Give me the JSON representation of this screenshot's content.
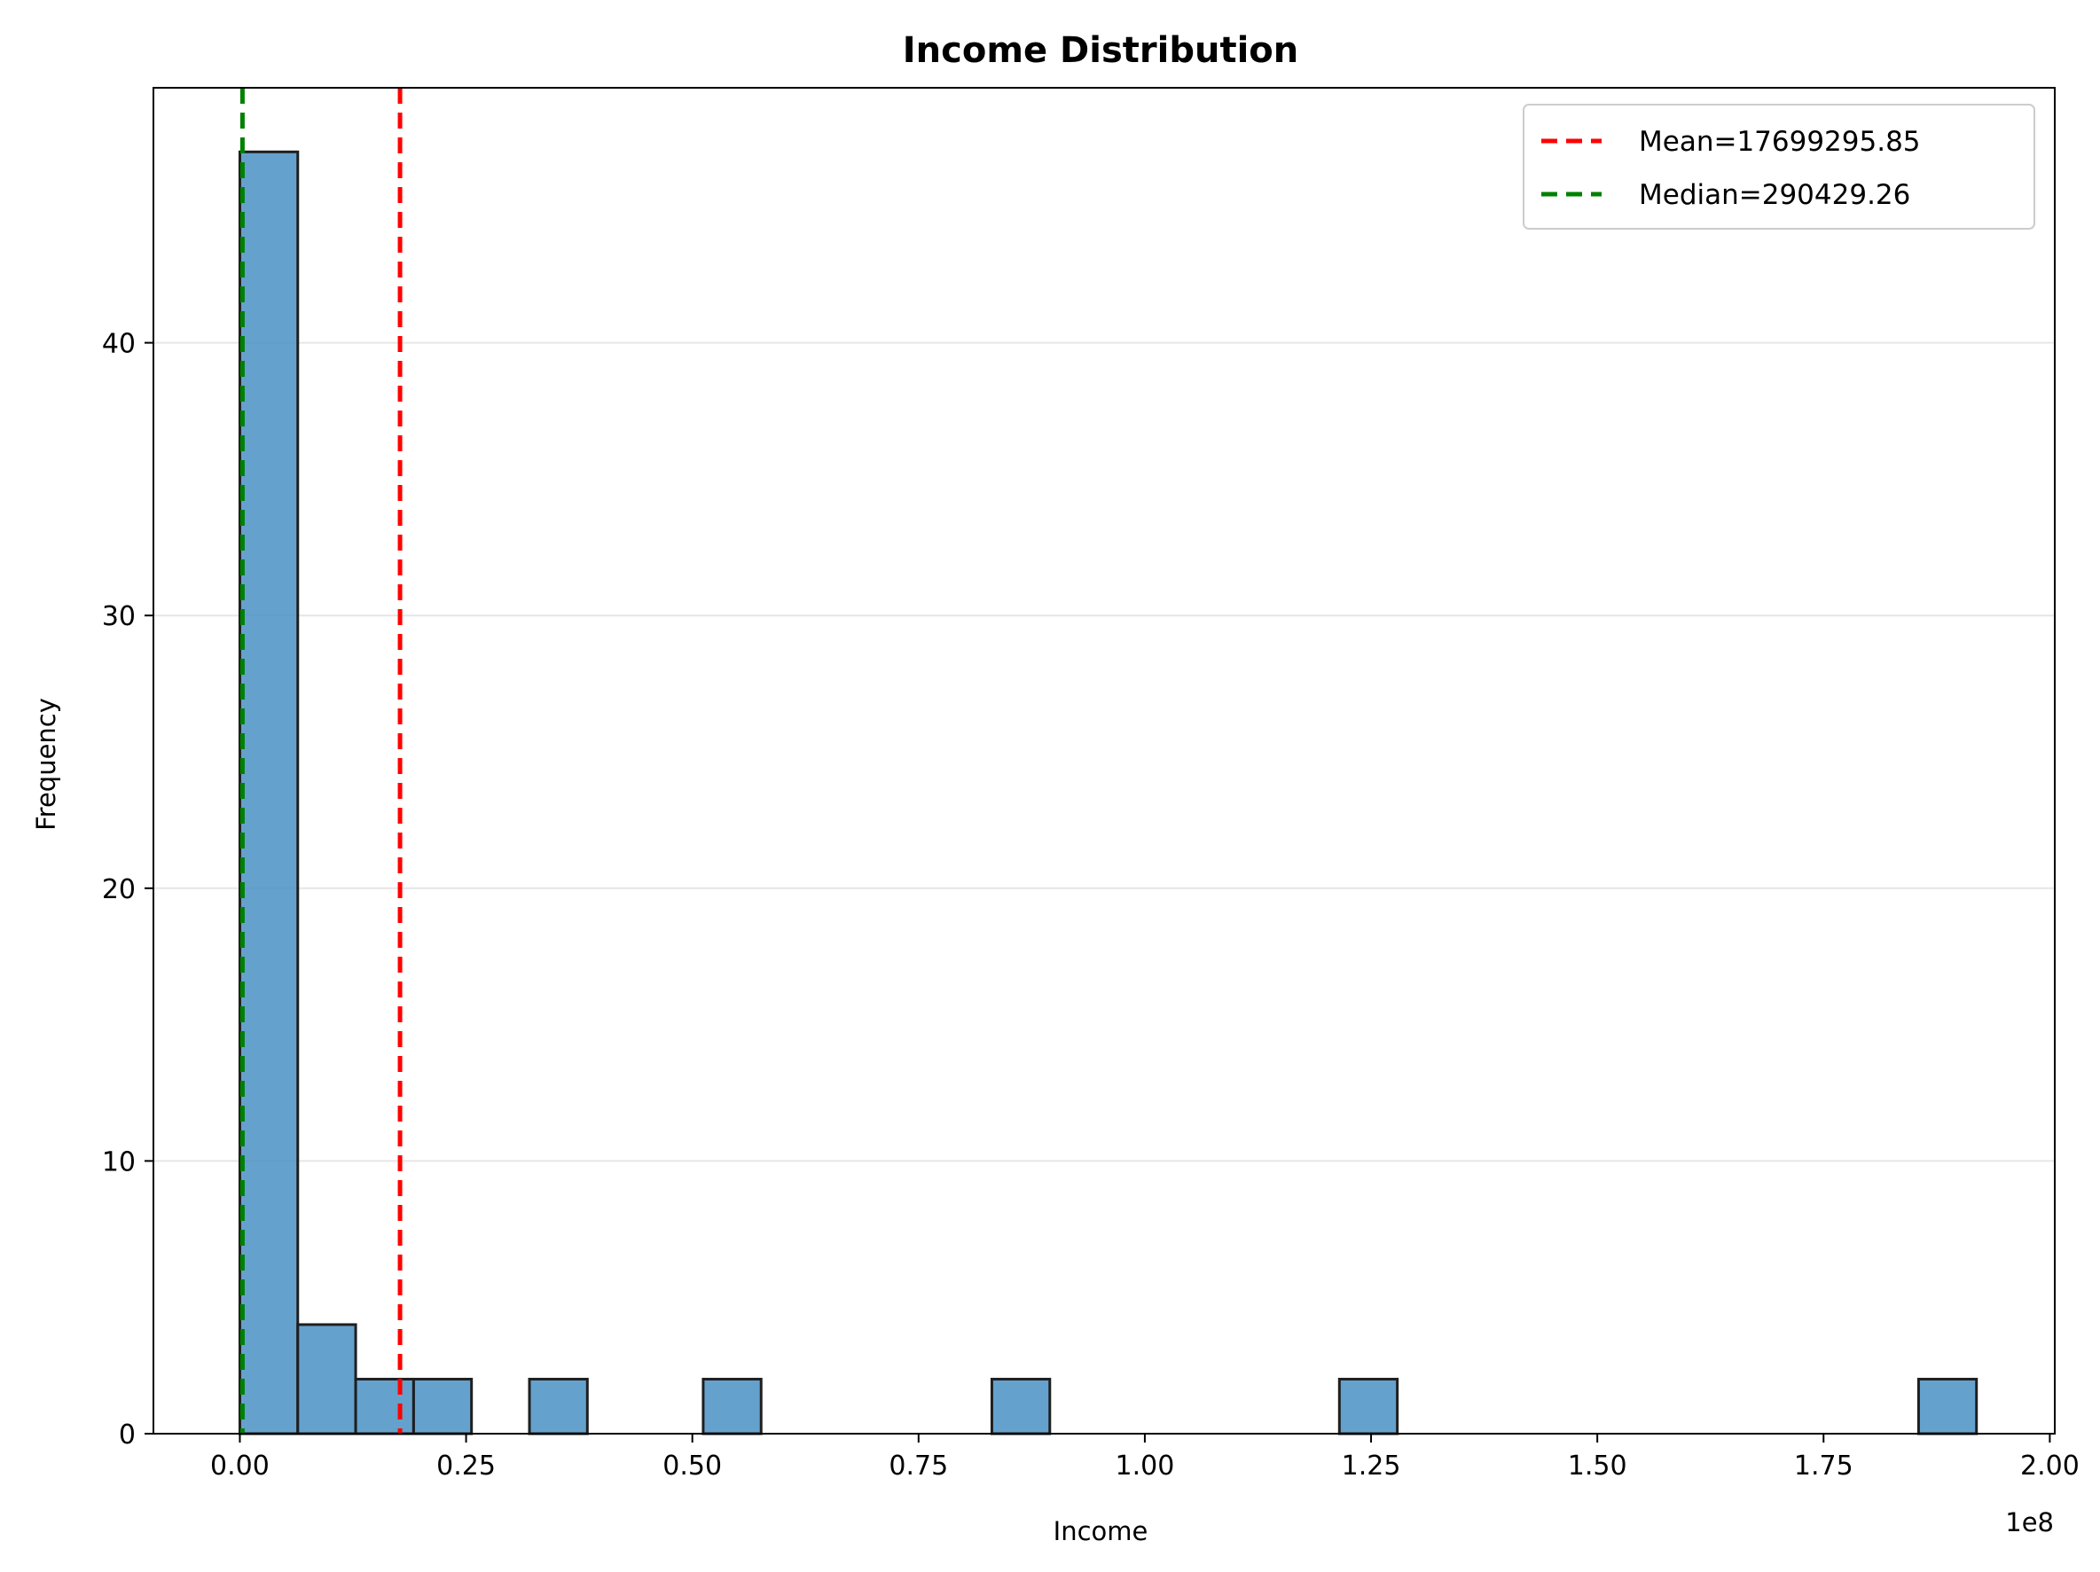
{
  "chart_data": {
    "type": "bar",
    "title": "Income Distribution",
    "xlabel": "Income",
    "ylabel": "Frequency",
    "x_offset_label": "1e8",
    "x_scale": 100000000,
    "xlim": [
      -0.0955,
      2.0055
    ],
    "ylim": [
      0,
      49.35
    ],
    "x_ticks": [
      0.0,
      0.25,
      0.5,
      0.75,
      1.0,
      1.25,
      1.5,
      1.75,
      2.0
    ],
    "x_tick_labels": [
      "0.00",
      "0.25",
      "0.50",
      "0.75",
      "1.00",
      "1.25",
      "1.50",
      "1.75",
      "2.00"
    ],
    "y_ticks": [
      0,
      10,
      20,
      30,
      40
    ],
    "y_tick_labels": [
      "0",
      "10",
      "20",
      "30",
      "40"
    ],
    "grid": "y-axis, light gray",
    "bars": [
      {
        "x0": 0.0,
        "x1": 0.064,
        "value": 47
      },
      {
        "x0": 0.064,
        "x1": 0.128,
        "value": 4
      },
      {
        "x0": 0.128,
        "x1": 0.192,
        "value": 2
      },
      {
        "x0": 0.192,
        "x1": 0.256,
        "value": 2
      },
      {
        "x0": 0.32,
        "x1": 0.384,
        "value": 2
      },
      {
        "x0": 0.512,
        "x1": 0.576,
        "value": 2
      },
      {
        "x0": 0.831,
        "x1": 0.895,
        "value": 2
      },
      {
        "x0": 1.215,
        "x1": 1.279,
        "value": 2
      },
      {
        "x0": 1.855,
        "x1": 1.919,
        "value": 2
      }
    ],
    "bar_color": "#4a90c4",
    "bar_edge_color": "#1f1f1f",
    "reference_lines": [
      {
        "label": "Mean=17699295.85",
        "x": 0.17699,
        "color": "#ff0000"
      },
      {
        "label": "Median=290429.26",
        "x": 0.0029,
        "color": "#008000"
      }
    ],
    "legend_position": "top-right"
  }
}
